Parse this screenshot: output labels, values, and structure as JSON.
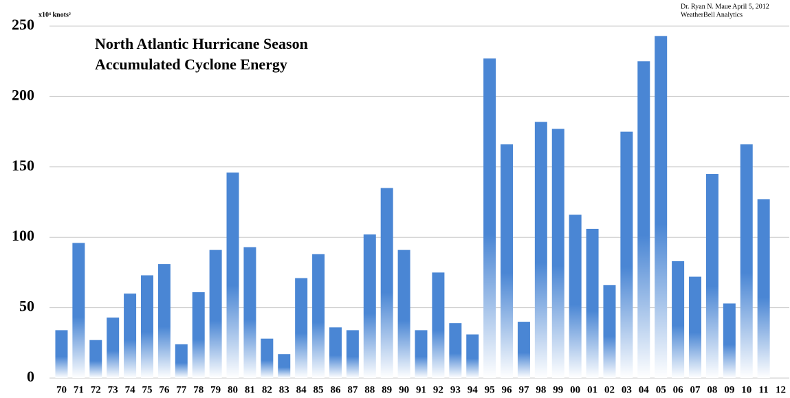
{
  "chart_data": {
    "type": "bar",
    "title": "North Atlantic Hurricane Season",
    "subtitle": "Accumulated Cyclone Energy",
    "y_label": "x10⁴ knots²",
    "credit": [
      "Dr. Ryan N. Maue  April 5, 2012",
      "WeatherBell Analytics"
    ],
    "categories": [
      "70",
      "71",
      "72",
      "73",
      "74",
      "75",
      "76",
      "77",
      "78",
      "79",
      "80",
      "81",
      "82",
      "83",
      "84",
      "85",
      "86",
      "87",
      "88",
      "89",
      "90",
      "91",
      "92",
      "93",
      "94",
      "95",
      "96",
      "97",
      "98",
      "99",
      "00",
      "01",
      "02",
      "03",
      "04",
      "05",
      "06",
      "07",
      "08",
      "09",
      "10",
      "11",
      "12"
    ],
    "values": [
      34,
      96,
      27,
      43,
      60,
      73,
      81,
      24,
      61,
      91,
      146,
      93,
      28,
      17,
      71,
      88,
      36,
      34,
      102,
      135,
      91,
      34,
      75,
      39,
      31,
      227,
      166,
      40,
      182,
      177,
      116,
      106,
      66,
      175,
      225,
      243,
      83,
      72,
      145,
      53,
      166,
      127,
      null
    ],
    "color": "#4a86d4",
    "ylim": [
      0,
      250
    ],
    "yticks": [
      0,
      50,
      100,
      150,
      200,
      250
    ],
    "grid": true
  }
}
